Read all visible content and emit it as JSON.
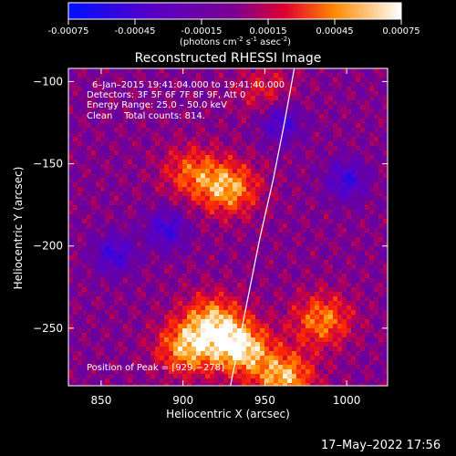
{
  "colorbar": {
    "tick_labels": [
      "-0.00075",
      "-0.00045",
      "-0.00015",
      "0.00015",
      "0.00045",
      "0.00075"
    ],
    "range": [
      -0.00075,
      0.00075
    ],
    "units_text": "(photons cm",
    "units_sup1": "-2",
    "units_mid1": " s",
    "units_sup2": "-1",
    "units_mid2": " asec",
    "units_sup3": "-2",
    "units_end": ")",
    "colors": [
      "#0010ff",
      "#6a00c8",
      "#d00060",
      "#ff8800",
      "#ffffff"
    ]
  },
  "chart_data": {
    "type": "heatmap",
    "title": "Reconstructed RHESSI Image",
    "xlabel": "Heliocentric X (arcsec)",
    "ylabel": "Heliocentric Y (arcsec)",
    "xlim": [
      830,
      1025
    ],
    "ylim": [
      -285,
      -92
    ],
    "x_ticks": [
      850,
      900,
      950,
      1000
    ],
    "y_ticks": [
      -100,
      -150,
      -200,
      -250
    ],
    "x_tick_labels": [
      "850",
      "900",
      "950",
      "1000"
    ],
    "y_tick_labels": [
      "−100",
      "−150",
      "−200",
      "−250"
    ],
    "annotations": {
      "time_range": "6–Jan–2015 19:41:04.000 to 19:41:40.000",
      "detectors": "Detectors: 3F 5F 6F 7F 8F 9F, Att 0",
      "energy": "Energy Range: 25.0 – 50.0 keV",
      "clean": "Clean    Total counts: 814.",
      "peak": "Position of Peak = [929,−278]"
    },
    "limb_curve": [
      [
        968,
        -92
      ],
      [
        962,
        -125
      ],
      [
        955,
        -160
      ],
      [
        947,
        -195
      ],
      [
        940,
        -230
      ],
      [
        934,
        -260
      ],
      [
        929,
        -285
      ]
    ],
    "hot_regions": [
      {
        "x": 935,
        "y": -262,
        "level": 1.0
      },
      {
        "x": 902,
        "y": -262,
        "level": 0.8
      },
      {
        "x": 918,
        "y": -245,
        "level": 0.75
      },
      {
        "x": 962,
        "y": -280,
        "level": 0.85
      },
      {
        "x": 985,
        "y": -245,
        "level": 0.7
      },
      {
        "x": 928,
        "y": -165,
        "level": 0.8
      },
      {
        "x": 905,
        "y": -155,
        "level": 0.55
      },
      {
        "x": 950,
        "y": -105,
        "level": 0.35
      }
    ],
    "cold_regions": [
      {
        "x": 960,
        "y": -125
      },
      {
        "x": 858,
        "y": -205
      },
      {
        "x": 1000,
        "y": -160
      },
      {
        "x": 890,
        "y": -190
      }
    ]
  },
  "footer": {
    "date": "17–May–2022 17:56"
  }
}
